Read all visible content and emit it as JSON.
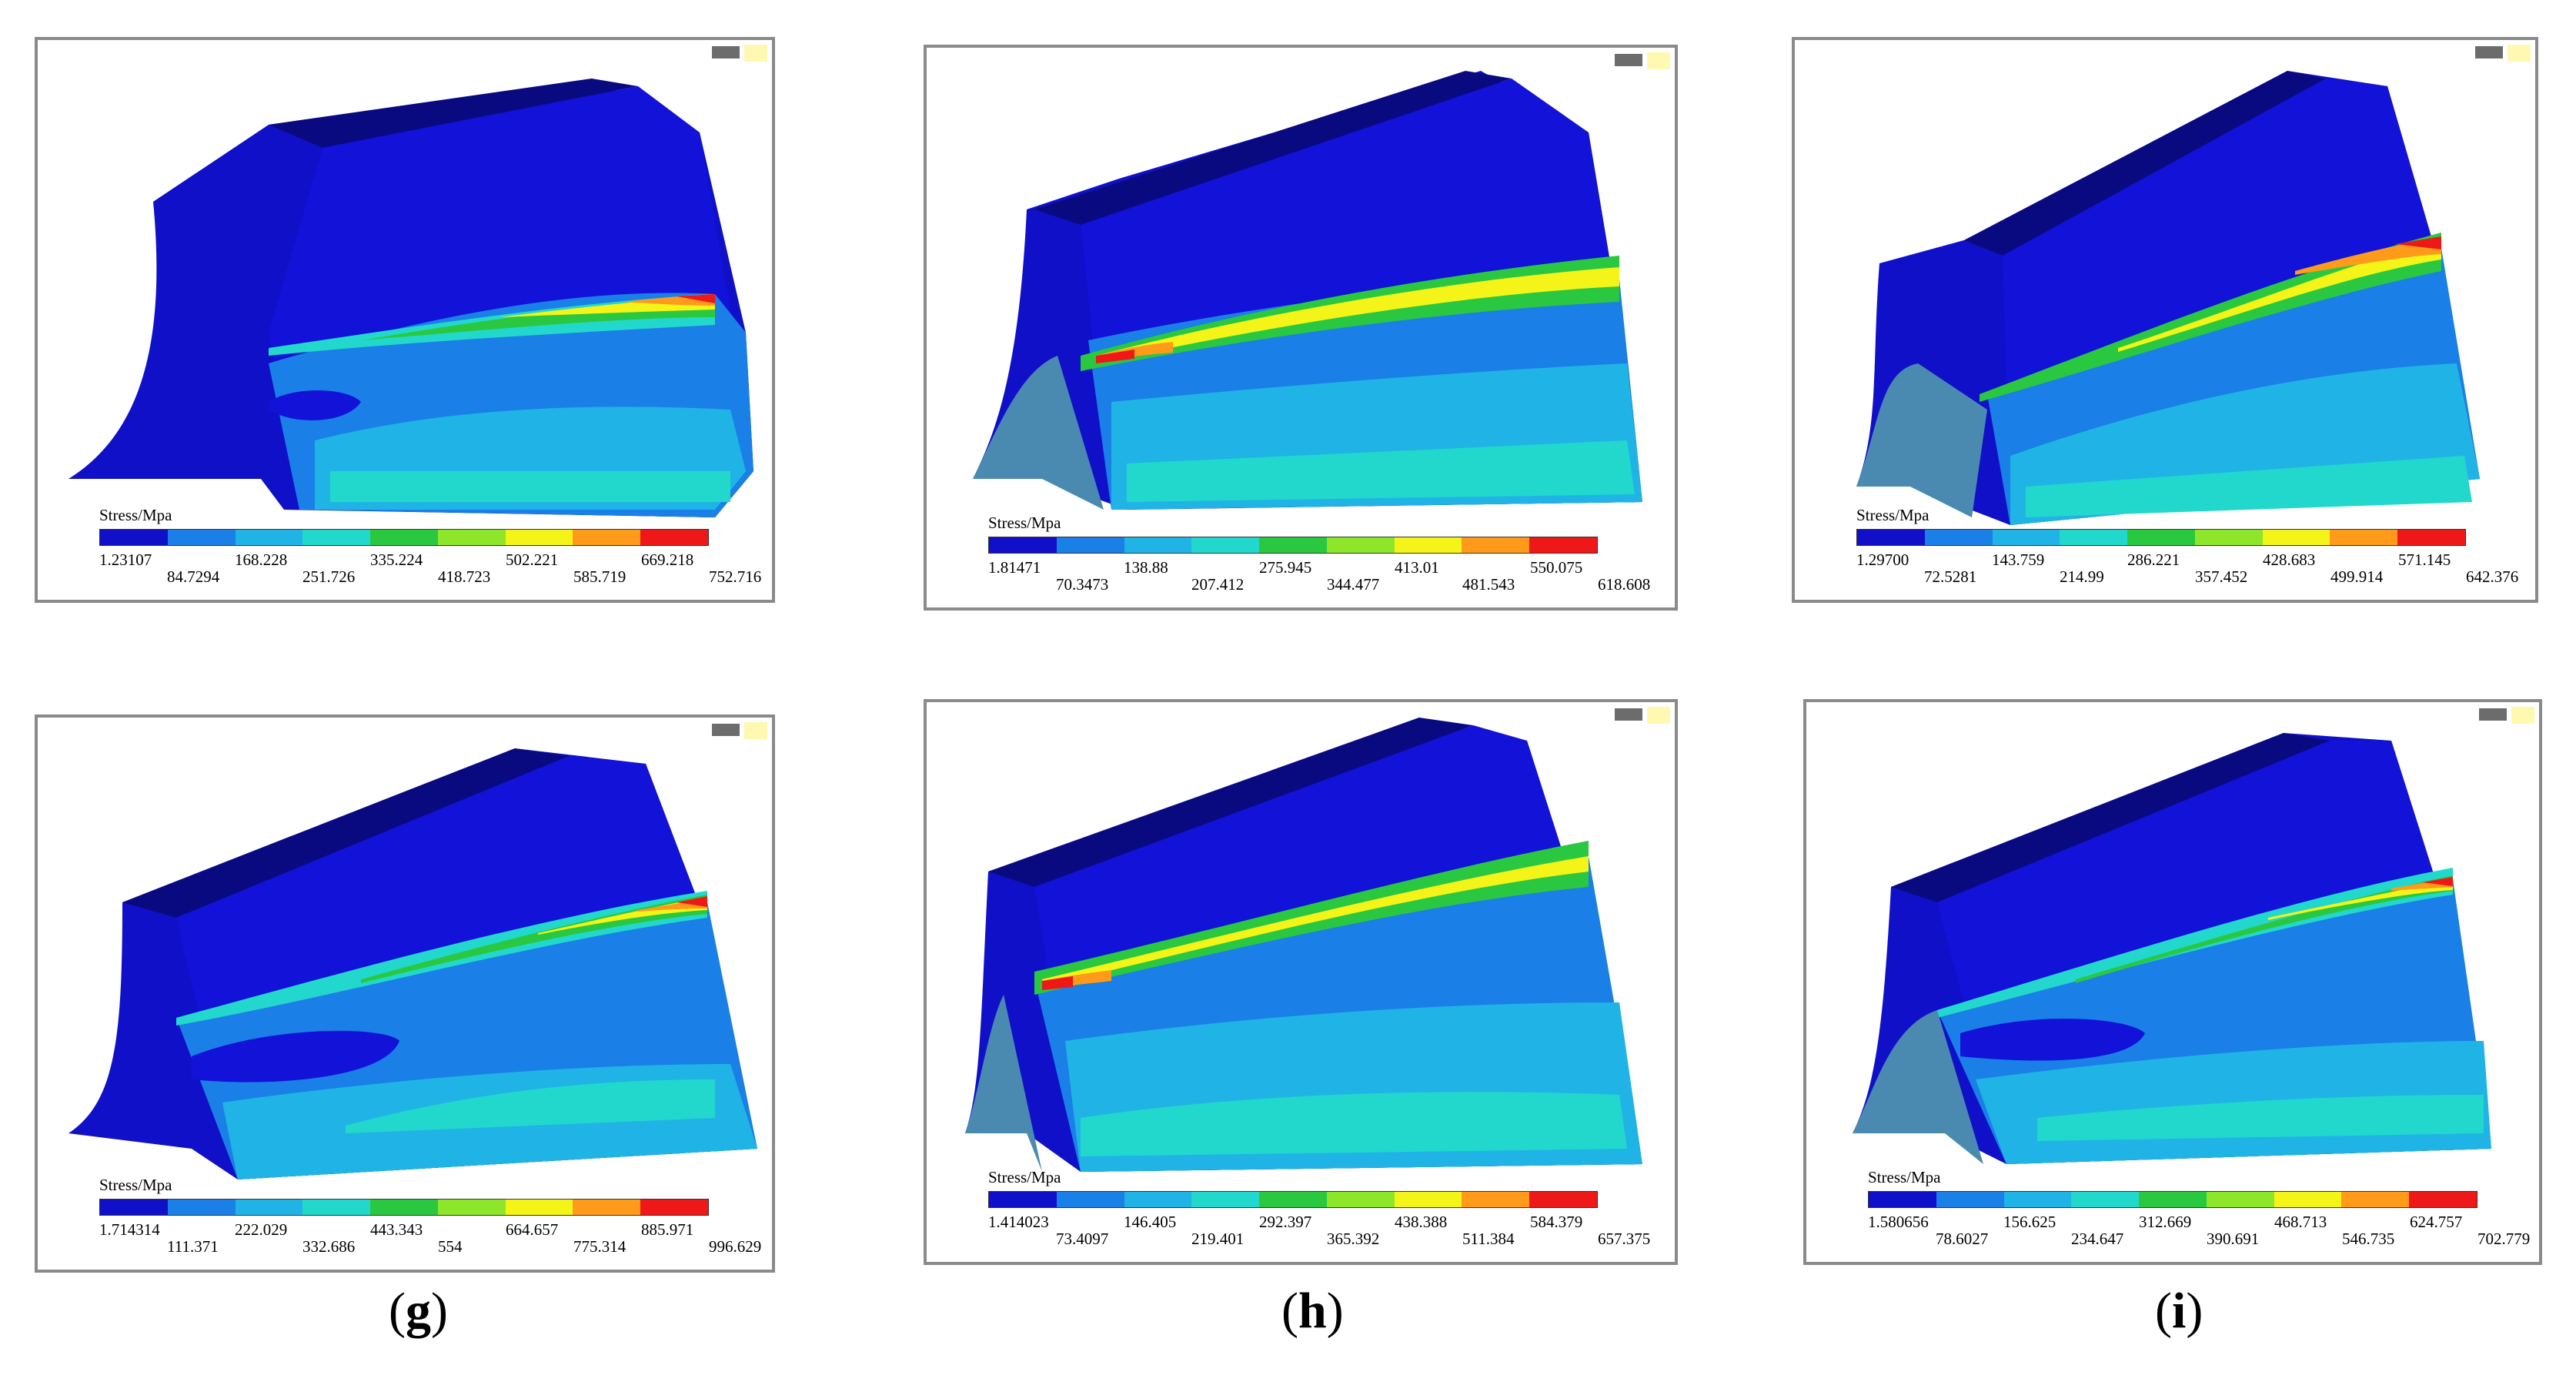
{
  "legend_title": "Stress/Mpa",
  "colors": [
    "#1010c8",
    "#1a7fe6",
    "#20b4e6",
    "#22d8cc",
    "#2ac840",
    "#8ee62a",
    "#f4f418",
    "#ff9a1a",
    "#ee1818"
  ],
  "panels": [
    {
      "ticks": [
        "1.23107",
        "84.7294",
        "168.228",
        "251.726",
        "335.224",
        "418.723",
        "502.221",
        "585.719",
        "669.218",
        "752.716"
      ]
    },
    {
      "ticks": [
        "1.81471",
        "70.3473",
        "138.88",
        "207.412",
        "275.945",
        "344.477",
        "413.01",
        "481.543",
        "550.075",
        "618.608"
      ]
    },
    {
      "ticks": [
        "1.29700",
        "72.5281",
        "143.759",
        "214.99",
        "286.221",
        "357.452",
        "428.683",
        "499.914",
        "571.145",
        "642.376"
      ]
    },
    {
      "ticks": [
        "1.714314",
        "111.371",
        "222.029",
        "332.686",
        "443.343",
        "554",
        "664.657",
        "775.314",
        "885.971",
        "996.629"
      ]
    },
    {
      "ticks": [
        "1.414023",
        "73.4097",
        "146.405",
        "219.401",
        "292.397",
        "365.392",
        "438.388",
        "511.384",
        "584.379",
        "657.375"
      ]
    },
    {
      "ticks": [
        "1.580656",
        "78.6027",
        "156.625",
        "234.647",
        "312.669",
        "390.691",
        "468.713",
        "546.735",
        "624.757",
        "702.779"
      ]
    }
  ],
  "captions": [
    "g",
    "h",
    "i"
  ]
}
